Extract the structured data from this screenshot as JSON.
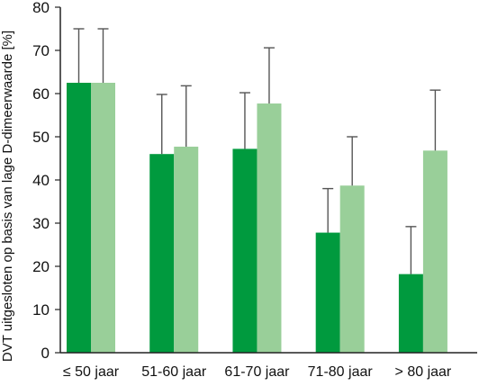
{
  "chart_data": {
    "type": "bar",
    "title": "",
    "xlabel": "",
    "ylabel": "DVT uitgesloten op basis van lage D-dimeerwaarde [%]",
    "ylim": [
      0,
      80
    ],
    "yticks": [
      "0",
      "10",
      "20",
      "30",
      "40",
      "50",
      "60",
      "70",
      "80"
    ],
    "grid": false,
    "legend": "none",
    "categories": [
      "≤ 50 jaar",
      "51-60 jaar",
      "61-70 jaar",
      "71-80 jaar",
      "> 80 jaar"
    ],
    "series": [
      {
        "color": "#009a3e",
        "values": [
          62.5,
          46,
          47.2,
          27.8,
          18.2
        ],
        "error_upper": [
          75,
          59.8,
          60.2,
          38,
          29.2
        ]
      },
      {
        "color": "#99cf99",
        "values": [
          62.5,
          47.7,
          57.7,
          38.7,
          46.8
        ],
        "error_upper": [
          75,
          61.8,
          70.6,
          50,
          60.8
        ]
      }
    ],
    "error_bar_color": "#555555"
  }
}
